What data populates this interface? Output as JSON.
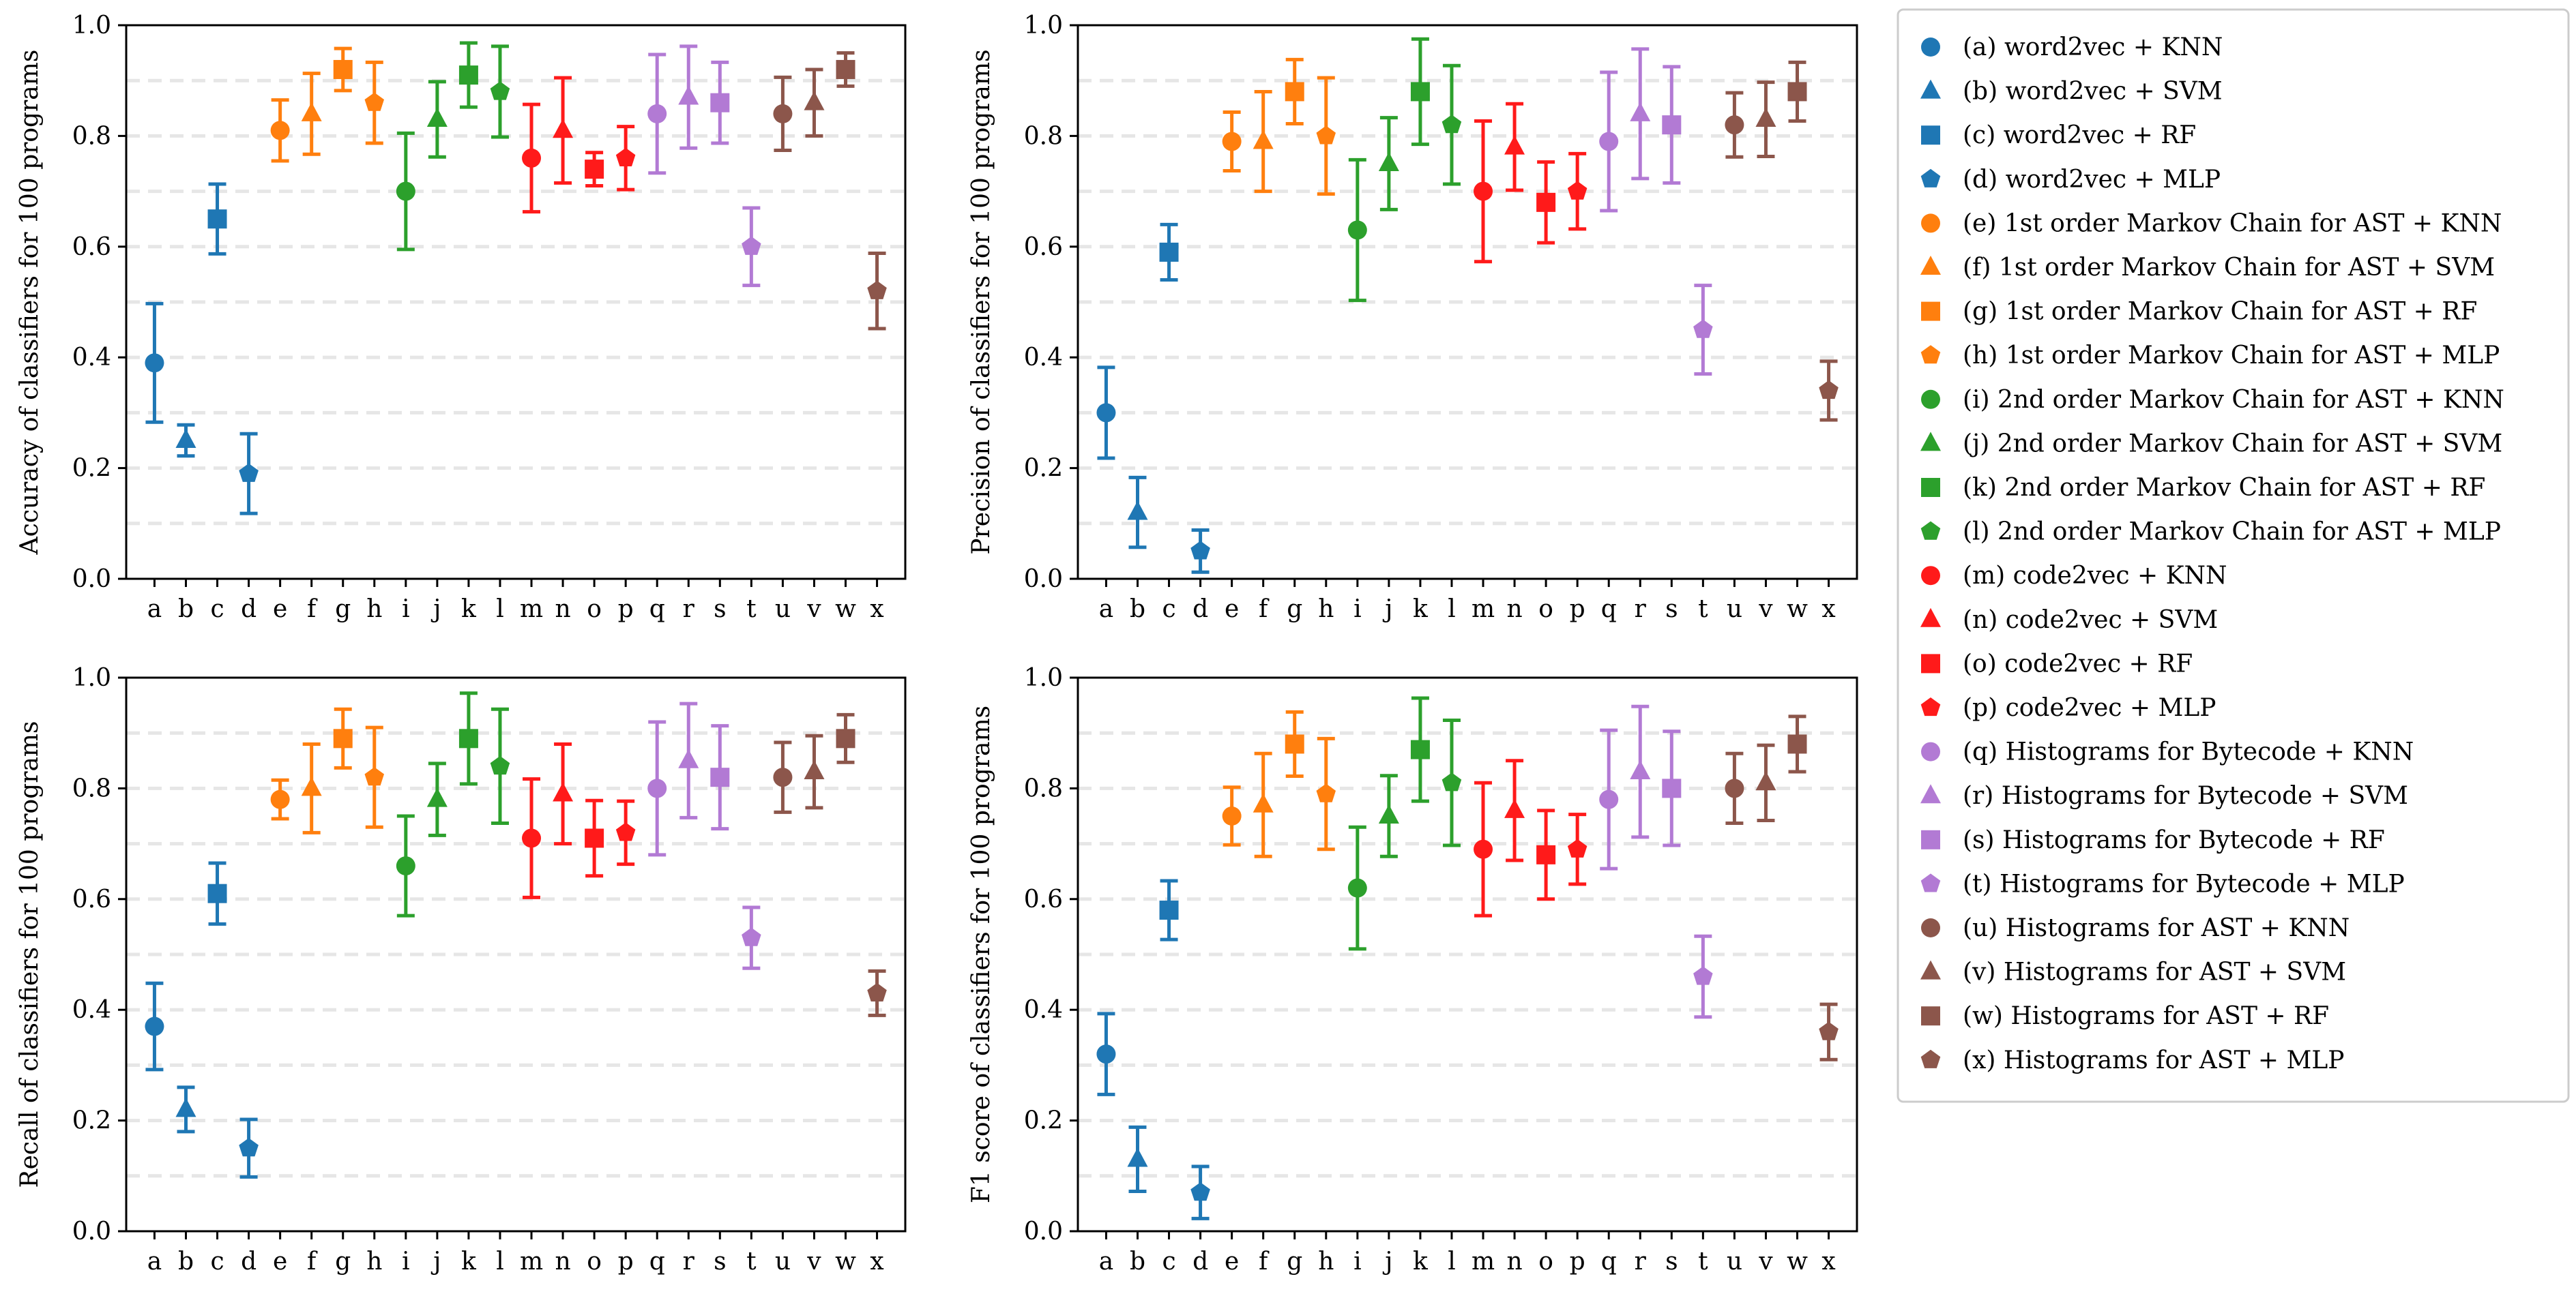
{
  "chart_data": {
    "type": "scatter",
    "layout": "2x2 grid of dot plots with error bars",
    "categories": [
      "a",
      "b",
      "c",
      "d",
      "e",
      "f",
      "g",
      "h",
      "i",
      "j",
      "k",
      "l",
      "m",
      "n",
      "o",
      "p",
      "q",
      "r",
      "s",
      "t",
      "u",
      "v",
      "w",
      "x"
    ],
    "series": [
      {
        "code": "a",
        "label": "(a) word2vec + KNN",
        "color": "#1f77b4",
        "marker": "circle"
      },
      {
        "code": "b",
        "label": "(b) word2vec + SVM",
        "color": "#1f77b4",
        "marker": "triangle"
      },
      {
        "code": "c",
        "label": "(c) word2vec + RF",
        "color": "#1f77b4",
        "marker": "square"
      },
      {
        "code": "d",
        "label": "(d) word2vec + MLP",
        "color": "#1f77b4",
        "marker": "pentagon"
      },
      {
        "code": "e",
        "label": "(e) 1st order Markov Chain for AST + KNN",
        "color": "#ff7f0e",
        "marker": "circle"
      },
      {
        "code": "f",
        "label": "(f) 1st order Markov Chain for AST + SVM",
        "color": "#ff7f0e",
        "marker": "triangle"
      },
      {
        "code": "g",
        "label": "(g) 1st order Markov Chain for AST + RF",
        "color": "#ff7f0e",
        "marker": "square"
      },
      {
        "code": "h",
        "label": "(h) 1st order Markov Chain for AST + MLP",
        "color": "#ff7f0e",
        "marker": "pentagon"
      },
      {
        "code": "i",
        "label": "(i) 2nd order Markov Chain for AST + KNN",
        "color": "#2ca02c",
        "marker": "circle"
      },
      {
        "code": "j",
        "label": "(j) 2nd order Markov Chain for AST + SVM",
        "color": "#2ca02c",
        "marker": "triangle"
      },
      {
        "code": "k",
        "label": "(k) 2nd order Markov Chain for AST + RF",
        "color": "#2ca02c",
        "marker": "square"
      },
      {
        "code": "l",
        "label": "(l) 2nd order Markov Chain for AST + MLP",
        "color": "#2ca02c",
        "marker": "pentagon"
      },
      {
        "code": "m",
        "label": "(m) code2vec + KNN",
        "color": "#ff1a1a",
        "marker": "circle"
      },
      {
        "code": "n",
        "label": "(n) code2vec + SVM",
        "color": "#ff1a1a",
        "marker": "triangle"
      },
      {
        "code": "o",
        "label": "(o) code2vec + RF",
        "color": "#ff1a1a",
        "marker": "square"
      },
      {
        "code": "p",
        "label": "(p) code2vec + MLP",
        "color": "#ff1a1a",
        "marker": "pentagon"
      },
      {
        "code": "q",
        "label": "(q) Histograms for Bytecode + KNN",
        "color": "#b27ad4",
        "marker": "circle"
      },
      {
        "code": "r",
        "label": "(r) Histograms for Bytecode + SVM",
        "color": "#b27ad4",
        "marker": "triangle"
      },
      {
        "code": "s",
        "label": "(s) Histograms for Bytecode + RF",
        "color": "#b27ad4",
        "marker": "square"
      },
      {
        "code": "t",
        "label": "(t) Histograms for Bytecode + MLP",
        "color": "#b27ad4",
        "marker": "pentagon"
      },
      {
        "code": "u",
        "label": "(u) Histograms for AST + KNN",
        "color": "#8c564b",
        "marker": "circle"
      },
      {
        "code": "v",
        "label": "(v) Histograms for AST + SVM",
        "color": "#8c564b",
        "marker": "triangle"
      },
      {
        "code": "w",
        "label": "(w) Histograms for AST + RF",
        "color": "#8c564b",
        "marker": "square"
      },
      {
        "code": "x",
        "label": "(x) Histograms for AST + MLP",
        "color": "#8c564b",
        "marker": "pentagon"
      }
    ],
    "panels": [
      {
        "ylabel": "Accuracy of classifiers for 100 programs",
        "ylim": [
          0,
          1.0
        ],
        "yticks": [
          "0.0",
          "0.2",
          "0.4",
          "0.6",
          "0.8",
          "1.0"
        ],
        "values": [
          0.39,
          0.25,
          0.65,
          0.19,
          0.81,
          0.84,
          0.92,
          0.86,
          0.7,
          0.83,
          0.91,
          0.88,
          0.76,
          0.81,
          0.74,
          0.76,
          0.84,
          0.87,
          0.86,
          0.6,
          0.84,
          0.86,
          0.92,
          0.52
        ],
        "errors": [
          0.107,
          0.028,
          0.063,
          0.072,
          0.055,
          0.073,
          0.038,
          0.073,
          0.105,
          0.068,
          0.058,
          0.082,
          0.097,
          0.095,
          0.03,
          0.057,
          0.107,
          0.092,
          0.073,
          0.07,
          0.066,
          0.06,
          0.03,
          0.068
        ]
      },
      {
        "ylabel": "Precision of classifiers for 100 programs",
        "ylim": [
          0,
          1.0
        ],
        "yticks": [
          "0.0",
          "0.2",
          "0.4",
          "0.6",
          "0.8",
          "1.0"
        ],
        "values": [
          0.3,
          0.12,
          0.59,
          0.05,
          0.79,
          0.79,
          0.88,
          0.8,
          0.63,
          0.75,
          0.88,
          0.82,
          0.7,
          0.78,
          0.68,
          0.7,
          0.79,
          0.84,
          0.82,
          0.45,
          0.82,
          0.83,
          0.88,
          0.34
        ],
        "errors": [
          0.082,
          0.063,
          0.05,
          0.038,
          0.053,
          0.09,
          0.058,
          0.105,
          0.127,
          0.083,
          0.095,
          0.107,
          0.127,
          0.078,
          0.073,
          0.068,
          0.125,
          0.117,
          0.105,
          0.08,
          0.058,
          0.067,
          0.053,
          0.053
        ]
      },
      {
        "ylabel": "Recall of classifiers for 100 programs",
        "ylim": [
          0,
          1.0
        ],
        "yticks": [
          "0.0",
          "0.2",
          "0.4",
          "0.6",
          "0.8",
          "1.0"
        ],
        "values": [
          0.37,
          0.22,
          0.61,
          0.15,
          0.78,
          0.8,
          0.89,
          0.82,
          0.66,
          0.78,
          0.89,
          0.84,
          0.71,
          0.79,
          0.71,
          0.72,
          0.8,
          0.85,
          0.82,
          0.53,
          0.82,
          0.83,
          0.89,
          0.43
        ],
        "errors": [
          0.078,
          0.04,
          0.055,
          0.052,
          0.035,
          0.08,
          0.053,
          0.09,
          0.09,
          0.065,
          0.082,
          0.103,
          0.107,
          0.09,
          0.068,
          0.057,
          0.12,
          0.103,
          0.093,
          0.055,
          0.063,
          0.065,
          0.043,
          0.04
        ]
      },
      {
        "ylabel": "F1 score of classifiers for 100 programs",
        "ylim": [
          0,
          1.0
        ],
        "yticks": [
          "0.0",
          "0.2",
          "0.4",
          "0.6",
          "0.8",
          "1.0"
        ],
        "values": [
          0.32,
          0.13,
          0.58,
          0.07,
          0.75,
          0.77,
          0.88,
          0.79,
          0.62,
          0.75,
          0.87,
          0.81,
          0.69,
          0.76,
          0.68,
          0.69,
          0.78,
          0.83,
          0.8,
          0.46,
          0.8,
          0.81,
          0.88,
          0.36
        ],
        "errors": [
          0.073,
          0.058,
          0.053,
          0.047,
          0.052,
          0.093,
          0.058,
          0.1,
          0.11,
          0.073,
          0.093,
          0.113,
          0.12,
          0.09,
          0.08,
          0.063,
          0.125,
          0.118,
          0.103,
          0.073,
          0.063,
          0.068,
          0.05,
          0.05
        ]
      }
    ]
  }
}
